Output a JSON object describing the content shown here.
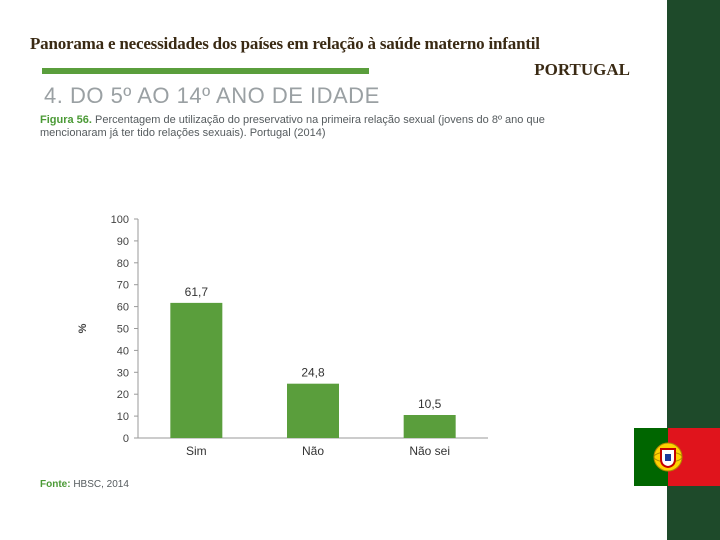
{
  "title": "Panorama e necessidades dos países em relação à saúde materno infantil",
  "subtitle": "PORTUGAL",
  "section_heading": "4. DO 5º AO 14º ANO DE IDADE",
  "figure": {
    "label": "Figura 56.",
    "caption": "Percentagem de utilização do preservativo na primeira relação sexual (jovens do 8º ano que mencionaram já ter tido relações sexuais). Portugal (2014)",
    "source_label": "Fonte:",
    "source_text": "HBSC, 2014"
  },
  "colors": {
    "bar": "#5a9e3c",
    "accent_green": "#4b9a36",
    "dark_band": "#1e4a2a",
    "flag_green": "#006600",
    "flag_red": "#e0141c"
  },
  "chart_data": {
    "type": "bar",
    "categories": [
      "Sim",
      "Não",
      "Não sei"
    ],
    "values": [
      61.7,
      24.8,
      10.5
    ],
    "value_labels": [
      "61,7",
      "24,8",
      "10,5"
    ],
    "ylabel": "%",
    "ylim": [
      0,
      100
    ],
    "yticks": [
      0,
      10,
      20,
      30,
      40,
      50,
      60,
      70,
      80,
      90,
      100
    ],
    "grid": false
  }
}
